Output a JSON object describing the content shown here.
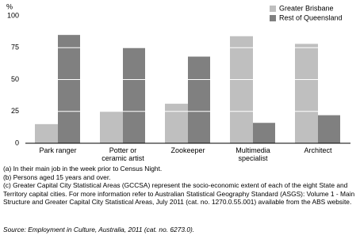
{
  "chart_data": {
    "type": "bar",
    "y_label": "%",
    "categories": [
      "Park ranger",
      "Potter or\nceramic artist",
      "Zookeeper",
      "Multimedia\nspecialist",
      "Architect"
    ],
    "series": [
      {
        "name": "Greater Brisbane",
        "color": "#bfbfbf",
        "values": [
          15,
          25,
          31,
          84,
          78
        ]
      },
      {
        "name": "Rest of Queensland",
        "color": "#808080",
        "values": [
          85,
          75,
          68,
          16,
          22
        ]
      }
    ],
    "ylim": [
      0,
      100
    ],
    "yticks": [
      0,
      25,
      50,
      75,
      100
    ],
    "grid": true,
    "grid_color": "#ffffff",
    "legend": "top-right",
    "footnotes": [
      "(a) In their main job in the week prior to Census Night.",
      "(b) Persons aged 15 years and over.",
      "(c) Greater Capital City Statistical Areas (GCCSA) represent the socio-economic extent of each of the eight State and Territory capital cities. For more information refer to Australian Statistical Geography Standard (ASGS): Volume 1 - Main Structure and Greater Capital City Statistical Areas, July 2011 (cat. no. 1270.0.55.001) available from the ABS website."
    ],
    "source": "Source: Employment in Culture, Australia, 2011 (cat. no. 6273.0)."
  }
}
